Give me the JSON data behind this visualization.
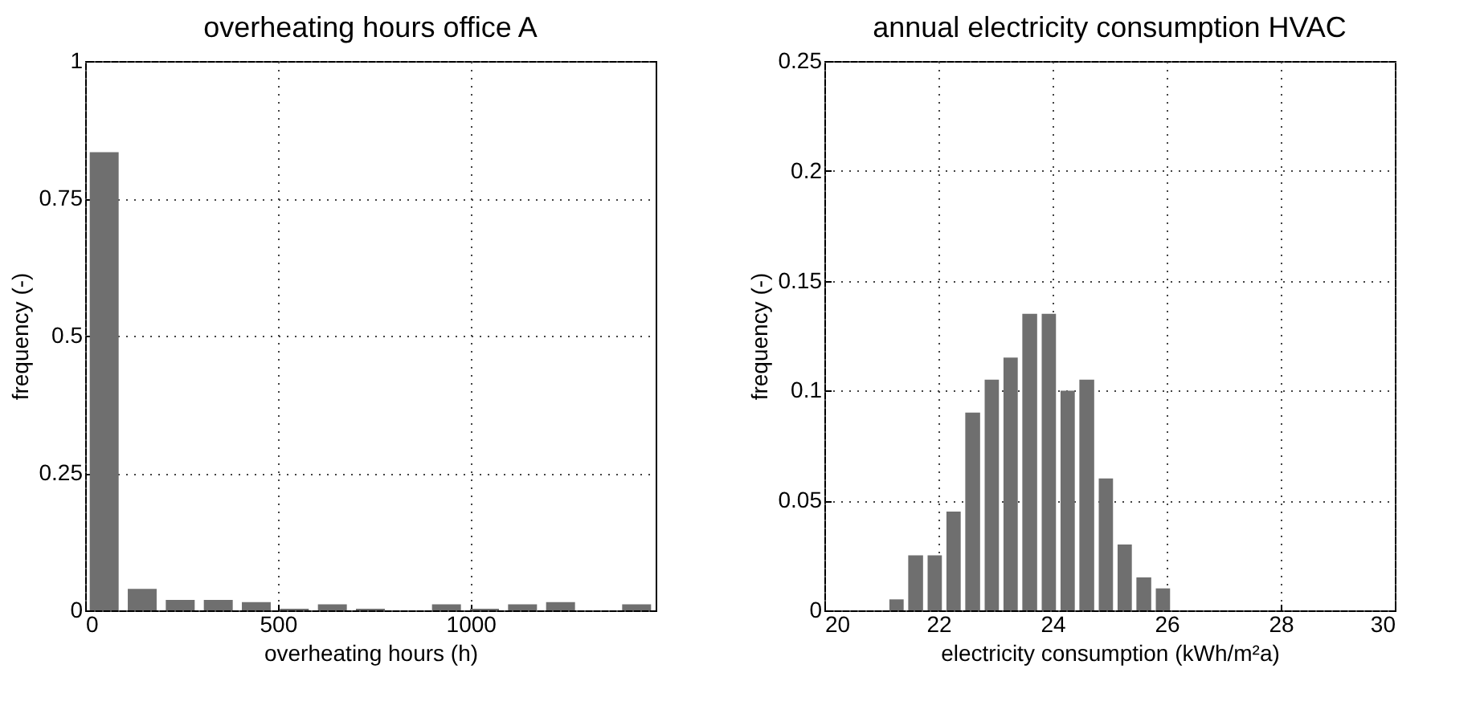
{
  "chart_data": [
    {
      "type": "histogram",
      "title": "overheating hours office A",
      "xlabel": "overheating hours (h)",
      "ylabel": "frequency (-)",
      "bins": [
        0,
        98.7,
        197.3,
        296,
        394.7,
        493.3,
        592,
        690.7,
        789.3,
        888,
        986.7,
        1085.3,
        1184,
        1282.7,
        1381.3,
        1480
      ],
      "values": [
        0.834,
        0.039,
        0.019,
        0.019,
        0.015,
        0.003,
        0.011,
        0.003,
        0,
        0.011,
        0.003,
        0.011,
        0.015,
        0,
        0.011
      ],
      "color": "#6f6f6f",
      "xlim": [
        0,
        1480
      ],
      "xticks": [
        0,
        500,
        1000
      ],
      "ylim": [
        0,
        1
      ],
      "yticks": [
        0,
        0.25,
        0.5,
        0.75,
        1
      ],
      "grid": true
    },
    {
      "type": "histogram",
      "title": "annual electricity consumption HVAC",
      "xlabel": "electricity consumption (kWh/m²a)",
      "ylabel": "frequency (-)",
      "bins": [
        21.1,
        21.43,
        21.77,
        22.1,
        22.43,
        22.77,
        23.1,
        23.43,
        23.77,
        24.1,
        24.43,
        24.77,
        25.1,
        25.43,
        25.77,
        26.1
      ],
      "values": [
        0.005,
        0.025,
        0.025,
        0.045,
        0.09,
        0.105,
        0.115,
        0.135,
        0.135,
        0.1,
        0.105,
        0.06,
        0.03,
        0.015,
        0.01
      ],
      "color": "#6f6f6f",
      "xlim": [
        20,
        30
      ],
      "xticks": [
        20,
        22,
        24,
        26,
        28,
        30
      ],
      "ylim": [
        0,
        0.25
      ],
      "yticks": [
        0,
        0.05,
        0.1,
        0.15,
        0.2,
        0.25
      ],
      "grid": true
    }
  ]
}
